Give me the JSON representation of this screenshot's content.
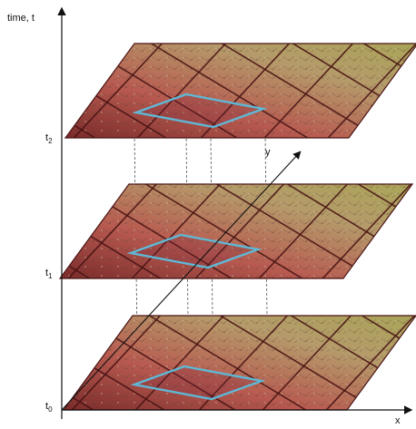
{
  "axes": {
    "time_label": "time, t",
    "x_label": "x",
    "y_label": "y"
  },
  "layers": [
    {
      "time_base": "t",
      "time_sub": "2"
    },
    {
      "time_base": "t",
      "time_sub": "1"
    },
    {
      "time_base": "t",
      "time_sub": "0"
    }
  ],
  "colors": {
    "cell_outline": "#5fb8d6",
    "grid": "#4a1414",
    "tint_warm": "#c84a3a",
    "tint_olive": "#a7a24a",
    "guide": "#555555"
  }
}
